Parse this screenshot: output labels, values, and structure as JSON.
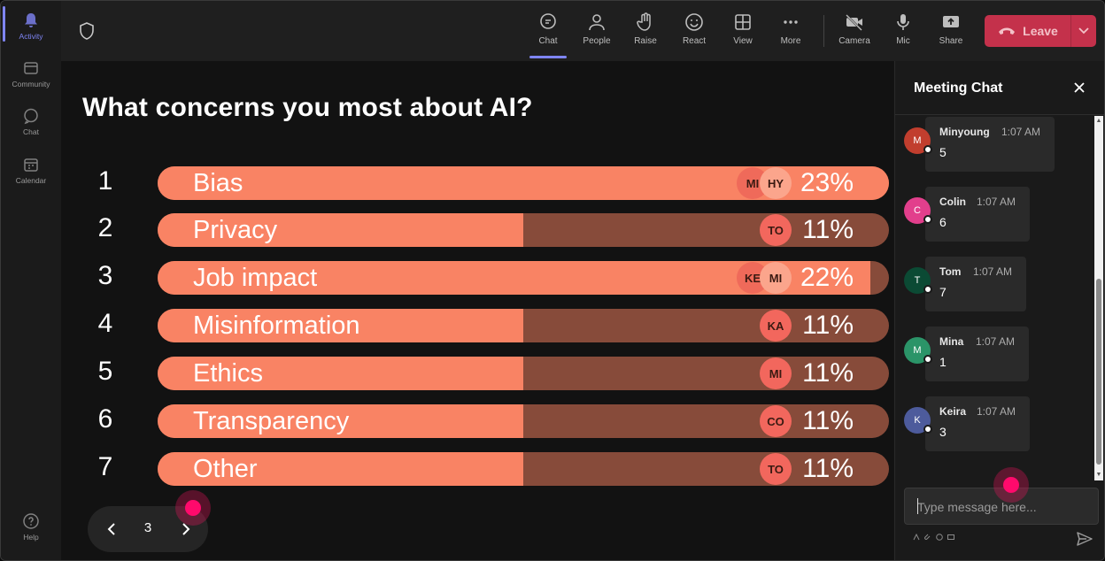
{
  "rail": {
    "items": [
      {
        "label": "Activity",
        "icon": "bell-icon",
        "active": true
      },
      {
        "label": "Community",
        "icon": "community-icon"
      },
      {
        "label": "Chat",
        "icon": "chat-icon"
      },
      {
        "label": "Calendar",
        "icon": "calendar-icon"
      }
    ],
    "help": {
      "label": "Help",
      "icon": "help-icon"
    }
  },
  "toolbar": {
    "buttons": [
      {
        "label": "Chat",
        "icon": "chat-icon",
        "active": true
      },
      {
        "label": "People",
        "icon": "people-icon"
      },
      {
        "label": "Raise",
        "icon": "hand-icon"
      },
      {
        "label": "React",
        "icon": "smile-icon"
      },
      {
        "label": "View",
        "icon": "grid-icon"
      },
      {
        "label": "More",
        "icon": "ellipsis-icon"
      },
      {
        "label": "Camera",
        "icon": "camera-off-icon"
      },
      {
        "label": "Mic",
        "icon": "mic-icon"
      },
      {
        "label": "Share",
        "icon": "share-icon"
      }
    ],
    "leave_label": "Leave"
  },
  "poll": {
    "title": "What concerns you most about AI?",
    "options": [
      {
        "num": "1",
        "label": "Bias",
        "pct": "23%",
        "fill": 1.0,
        "avatars": [
          "MI",
          "HY"
        ]
      },
      {
        "num": "2",
        "label": "Privacy",
        "pct": "11%",
        "fill": 0.5,
        "avatars": [
          "TO"
        ]
      },
      {
        "num": "3",
        "label": "Job impact",
        "pct": "22%",
        "fill": 0.975,
        "avatars": [
          "KE",
          "MI"
        ]
      },
      {
        "num": "4",
        "label": "Misinformation",
        "pct": "11%",
        "fill": 0.5,
        "avatars": [
          "KA"
        ]
      },
      {
        "num": "5",
        "label": "Ethics",
        "pct": "11%",
        "fill": 0.5,
        "avatars": [
          "MI"
        ]
      },
      {
        "num": "6",
        "label": "Transparency",
        "pct": "11%",
        "fill": 0.5,
        "avatars": [
          "CO"
        ]
      },
      {
        "num": "7",
        "label": "Other",
        "pct": "11%",
        "fill": 0.5,
        "avatars": [
          "TO"
        ]
      }
    ],
    "page": "3"
  },
  "chat": {
    "title": "Meeting Chat",
    "messages": [
      {
        "initial": "M",
        "name": "Minyoung",
        "time": "1:07 AM",
        "text": "5",
        "color": "#c13e2e"
      },
      {
        "initial": "C",
        "name": "Colin",
        "time": "1:07 AM",
        "text": "6",
        "color": "#e23f8c"
      },
      {
        "initial": "T",
        "name": "Tom",
        "time": "1:07 AM",
        "text": "7",
        "color": "#0b4a34"
      },
      {
        "initial": "M",
        "name": "Mina",
        "time": "1:07 AM",
        "text": "1",
        "color": "#2b9468"
      },
      {
        "initial": "K",
        "name": "Keira",
        "time": "1:07 AM",
        "text": "3",
        "color": "#4d5b9c"
      }
    ],
    "composer_placeholder": "Type message here..."
  }
}
